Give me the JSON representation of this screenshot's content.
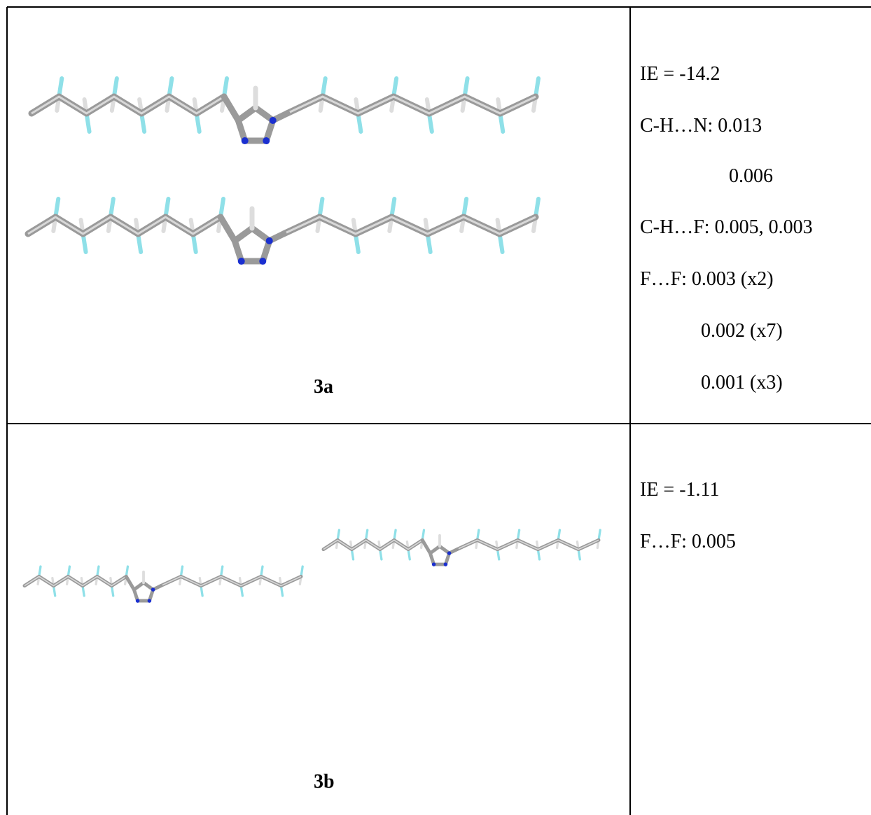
{
  "table": {
    "rows": [
      {
        "label": "3a",
        "lines": [
          "IE = -14.2",
          "C-H…N: 0.013",
          "0.006",
          "C-H…F: 0.005, 0.003",
          "F…F: 0.003 (x2)",
          "0.002 (x7)",
          "0.001 (x3)"
        ]
      },
      {
        "label": "3b",
        "lines": [
          "IE = -1.11",
          "F…F: 0.005"
        ]
      }
    ]
  }
}
